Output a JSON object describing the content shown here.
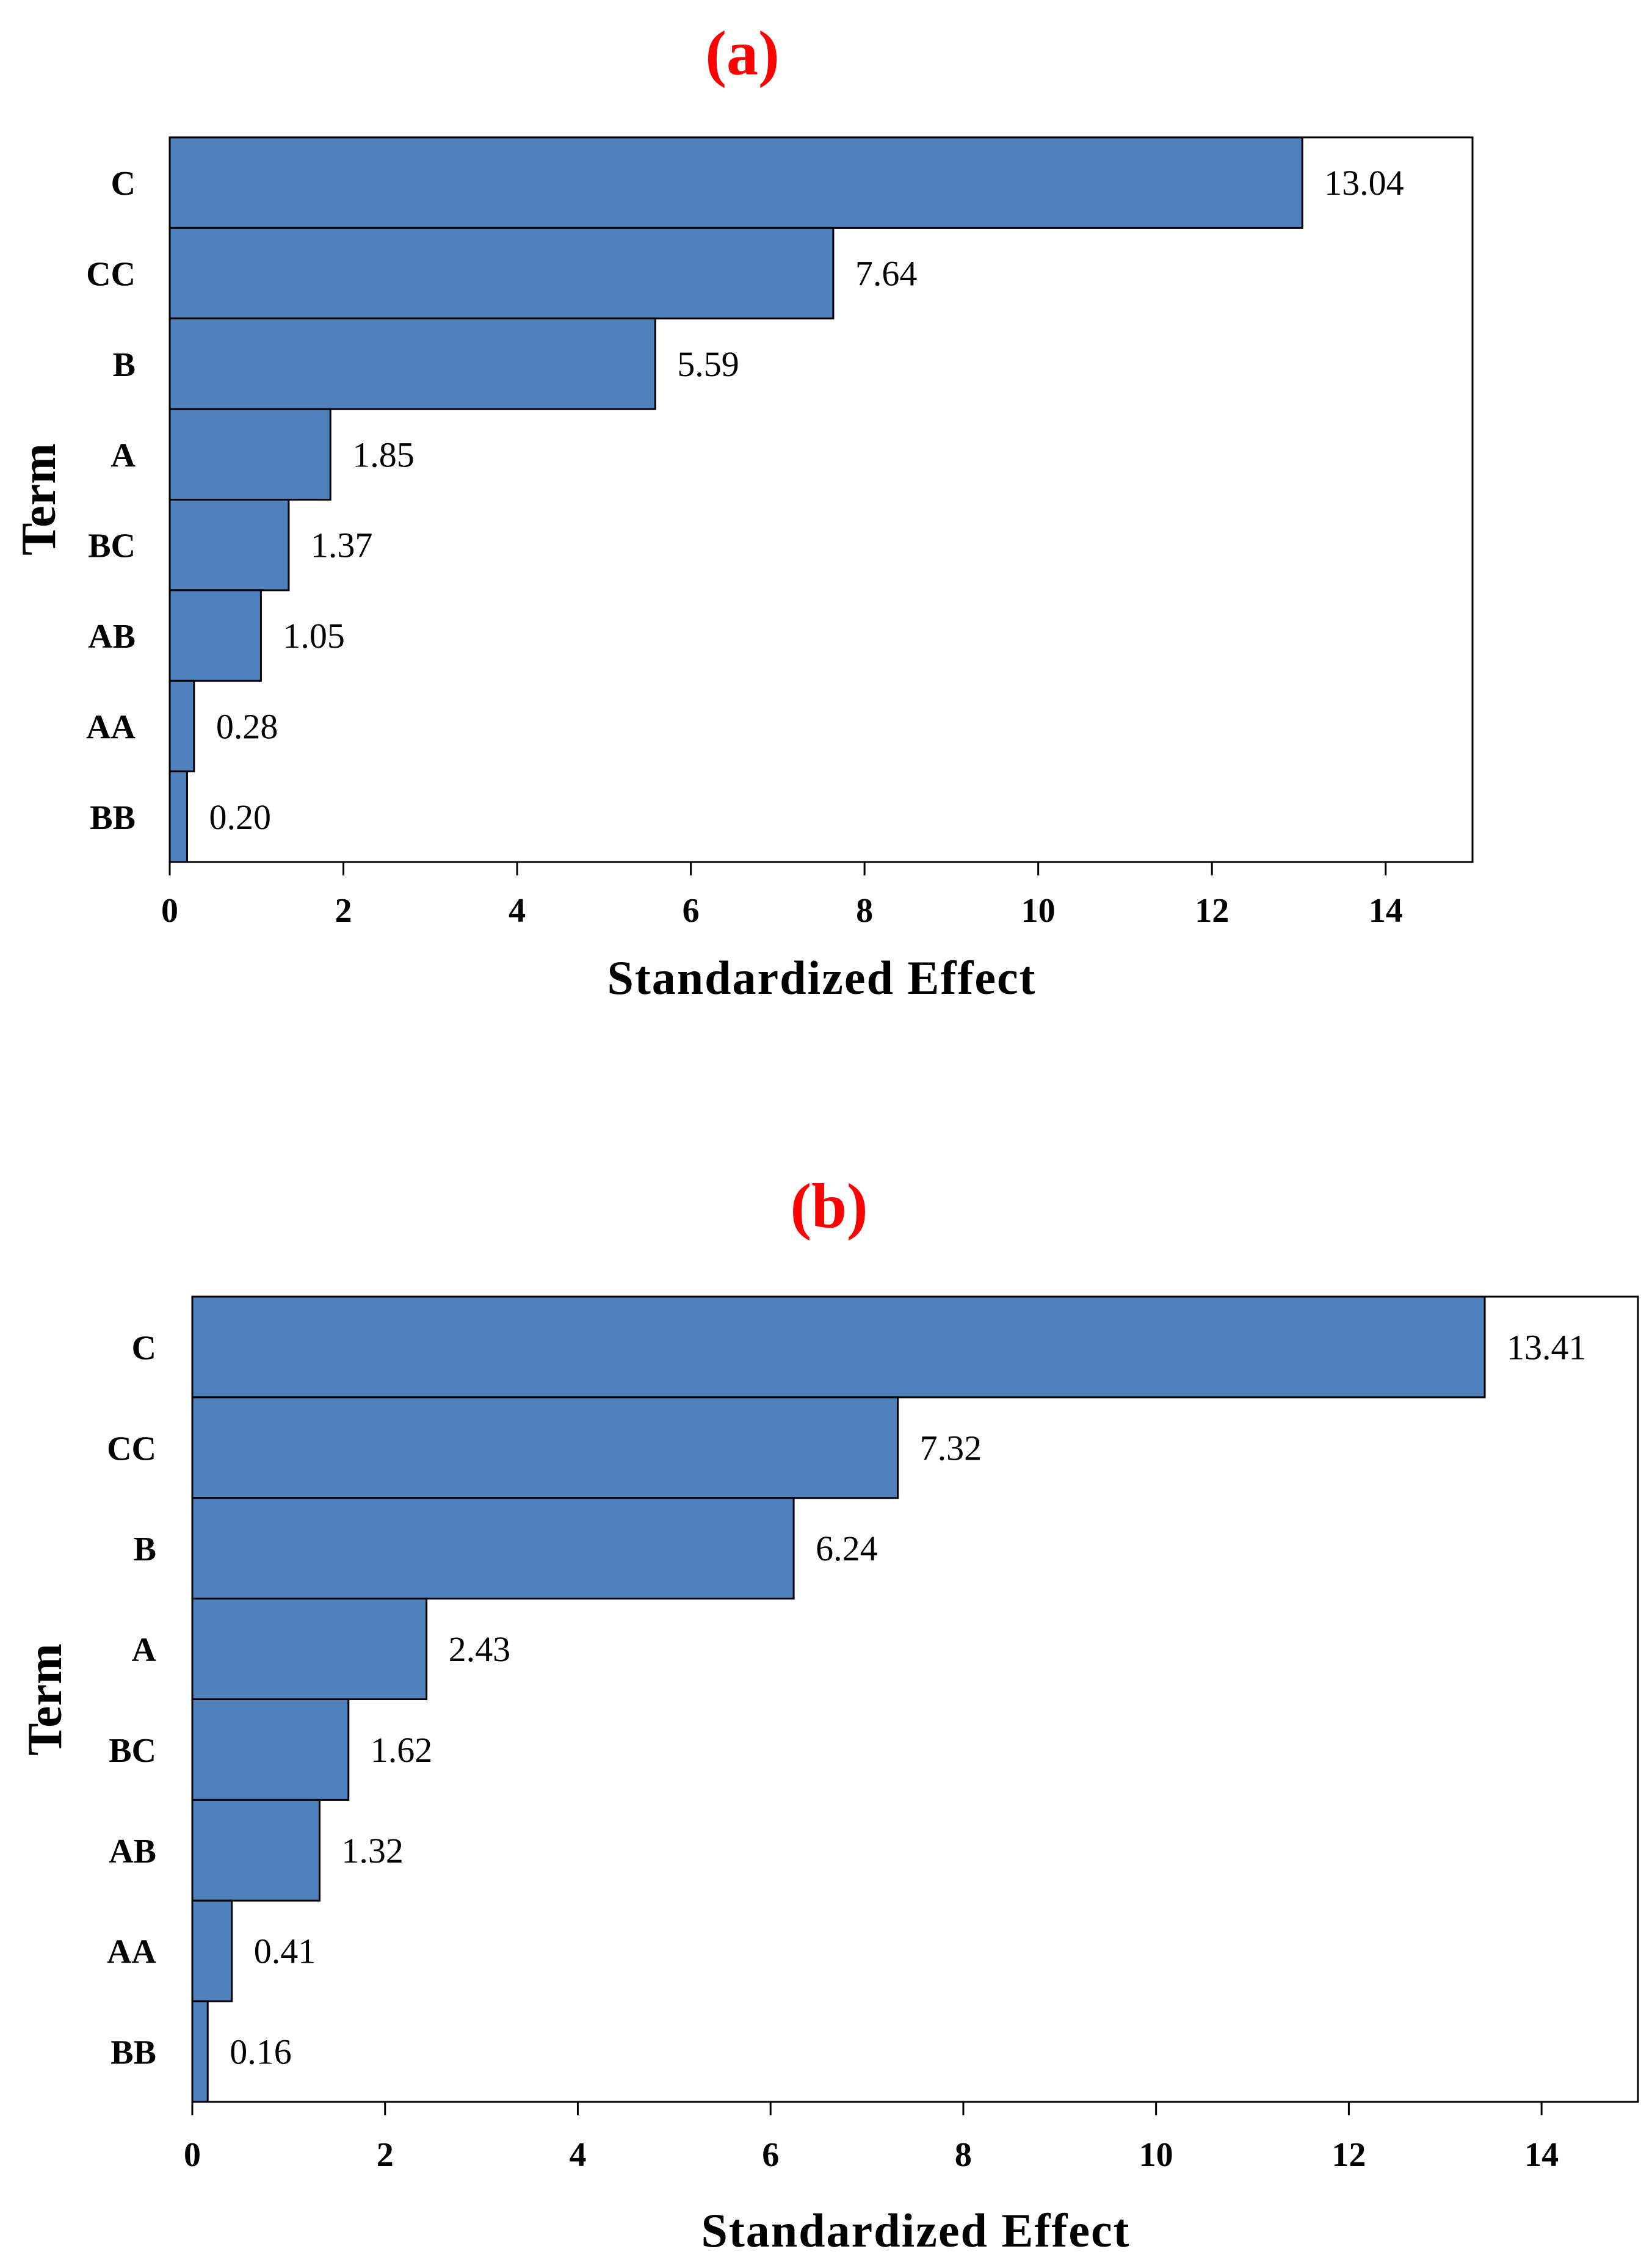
{
  "chart_data": [
    {
      "type": "bar",
      "orientation": "horizontal",
      "title": "(a)",
      "categories": [
        "C",
        "CC",
        "B",
        "A",
        "BC",
        "AB",
        "AA",
        "BB"
      ],
      "values": [
        13.04,
        7.64,
        5.59,
        1.85,
        1.37,
        1.05,
        0.28,
        0.2
      ],
      "value_labels": [
        "13.04",
        "7.64",
        "5.59",
        "1.85",
        "1.37",
        "1.05",
        "0.28",
        "0.20"
      ],
      "xlabel": "Standardized Effect",
      "ylabel": "Term",
      "xlim": [
        0,
        15
      ],
      "xticks": [
        0,
        2,
        4,
        6,
        8,
        10,
        12,
        14
      ],
      "xtick_labels": [
        "0",
        "2",
        "4",
        "6",
        "8",
        "10",
        "12",
        "14"
      ],
      "bar_color": "#4f81bd",
      "title_color": "#ff0000",
      "grid": false
    },
    {
      "type": "bar",
      "orientation": "horizontal",
      "title": "(b)",
      "categories": [
        "C",
        "CC",
        "B",
        "A",
        "BC",
        "AB",
        "AA",
        "BB"
      ],
      "values": [
        13.41,
        7.32,
        6.24,
        2.43,
        1.62,
        1.32,
        0.41,
        0.16
      ],
      "value_labels": [
        "13.41",
        "7.32",
        "6.24",
        "2.43",
        "1.62",
        "1.32",
        "0.41",
        "0.16"
      ],
      "xlabel": "Standardized Effect",
      "ylabel": "Term",
      "xlim": [
        0,
        15
      ],
      "xticks": [
        0,
        2,
        4,
        6,
        8,
        10,
        12,
        14
      ],
      "xtick_labels": [
        "0",
        "2",
        "4",
        "6",
        "8",
        "10",
        "12",
        "14"
      ],
      "bar_color": "#4f81bd",
      "title_color": "#ff0000",
      "grid": false
    }
  ]
}
